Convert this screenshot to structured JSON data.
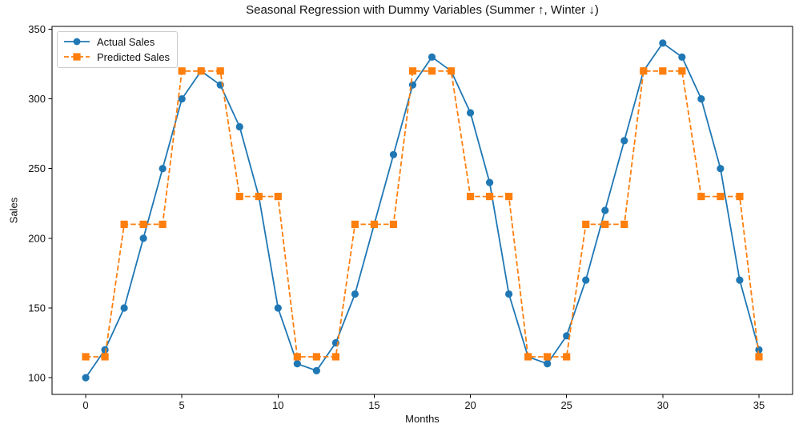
{
  "chart_data": {
    "type": "line",
    "title": "Seasonal Regression with Dummy Variables (Summer ↑, Winter ↓)",
    "xlabel": "Months",
    "ylabel": "Sales",
    "x": [
      0,
      1,
      2,
      3,
      4,
      5,
      6,
      7,
      8,
      9,
      10,
      11,
      12,
      13,
      14,
      15,
      16,
      17,
      18,
      19,
      20,
      21,
      22,
      23,
      24,
      25,
      26,
      27,
      28,
      29,
      30,
      31,
      32,
      33,
      34,
      35
    ],
    "series": [
      {
        "name": "Actual Sales",
        "color": "#1f77b4",
        "marker": "circle",
        "line_style": "solid",
        "values": [
          100,
          120,
          150,
          200,
          250,
          300,
          320,
          310,
          280,
          230,
          150,
          110,
          105,
          125,
          160,
          210,
          260,
          310,
          330,
          320,
          290,
          240,
          160,
          115,
          110,
          130,
          170,
          220,
          270,
          320,
          340,
          330,
          300,
          250,
          170,
          120
        ]
      },
      {
        "name": "Predicted Sales",
        "color": "#ff7f0e",
        "marker": "square",
        "line_style": "dashed",
        "values": [
          115,
          115,
          210,
          210,
          210,
          320,
          320,
          320,
          230,
          230,
          230,
          115,
          115,
          115,
          210,
          210,
          210,
          320,
          320,
          320,
          230,
          230,
          230,
          115,
          115,
          115,
          210,
          210,
          210,
          320,
          320,
          320,
          230,
          230,
          230,
          115
        ]
      }
    ],
    "xticks": [
      0,
      5,
      10,
      15,
      20,
      25,
      30,
      35
    ],
    "yticks": [
      100,
      150,
      200,
      250,
      300,
      350
    ],
    "xlim": [
      -1.75,
      36.75
    ],
    "ylim": [
      88,
      352
    ],
    "grid": false,
    "legend_position": "upper left",
    "axis_color": "#000000"
  }
}
